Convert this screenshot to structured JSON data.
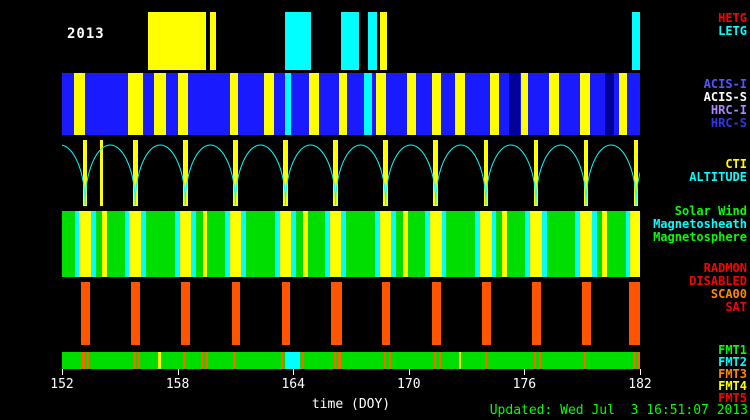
{
  "title_year": "2013",
  "x_axis": {
    "label": "time (DOY)",
    "min": 152,
    "max": 182,
    "ticks": [
      152,
      158,
      164,
      170,
      176,
      182
    ]
  },
  "footer": {
    "updated": "Updated: Wed Jul  3 16:51:07 2013"
  },
  "chart_data": {
    "type": "timeline-bands",
    "x_range": [
      152,
      182
    ],
    "x_unit": "day of year 2013",
    "bands": [
      {
        "id": "gratings",
        "background": "#000000",
        "labels": [
          {
            "text": "HETG",
            "color": "#ff0000"
          },
          {
            "text": "LETG",
            "color": "#00ffff"
          }
        ],
        "segments": [
          {
            "start": 156.45,
            "end": 159.45,
            "color": "#ffff00"
          },
          {
            "start": 159.7,
            "end": 160.0,
            "color": "#ffff00"
          },
          {
            "start": 163.55,
            "end": 164.9,
            "color": "#00ffff"
          },
          {
            "start": 166.5,
            "end": 167.4,
            "color": "#00ffff"
          },
          {
            "start": 167.9,
            "end": 168.35,
            "color": "#00ffff"
          },
          {
            "start": 168.5,
            "end": 168.85,
            "color": "#ffff00"
          },
          {
            "start": 181.6,
            "end": 182.0,
            "color": "#00ffff"
          }
        ]
      },
      {
        "id": "instruments",
        "background": "#1a1aff",
        "labels": [
          {
            "text": "ACIS-I",
            "color": "#5555ff"
          },
          {
            "text": "ACIS-S",
            "color": "#ffffff"
          },
          {
            "text": "HRC-I",
            "color": "#aa88ff"
          },
          {
            "text": "HRC-S",
            "color": "#3333ee"
          }
        ],
        "segments": [
          {
            "start": 152.6,
            "end": 153.2,
            "color": "#ffff00"
          },
          {
            "start": 155.4,
            "end": 156.2,
            "color": "#ffff00"
          },
          {
            "start": 156.8,
            "end": 157.4,
            "color": "#ffff00"
          },
          {
            "start": 158.0,
            "end": 158.55,
            "color": "#ffff00"
          },
          {
            "start": 160.7,
            "end": 161.15,
            "color": "#ffff00"
          },
          {
            "start": 162.5,
            "end": 163.0,
            "color": "#ffff00"
          },
          {
            "start": 163.6,
            "end": 163.9,
            "color": "#00ffff"
          },
          {
            "start": 164.8,
            "end": 165.35,
            "color": "#ffff00"
          },
          {
            "start": 166.4,
            "end": 166.8,
            "color": "#ffff00"
          },
          {
            "start": 167.7,
            "end": 168.1,
            "color": "#00ffff"
          },
          {
            "start": 168.3,
            "end": 168.8,
            "color": "#ffff00"
          },
          {
            "start": 169.9,
            "end": 170.4,
            "color": "#ffff00"
          },
          {
            "start": 171.2,
            "end": 171.65,
            "color": "#ffff00"
          },
          {
            "start": 172.4,
            "end": 172.9,
            "color": "#ffff00"
          },
          {
            "start": 174.2,
            "end": 174.7,
            "color": "#ffff00"
          },
          {
            "start": 175.2,
            "end": 175.75,
            "color": "#000099"
          },
          {
            "start": 175.8,
            "end": 176.2,
            "color": "#ffff00"
          },
          {
            "start": 177.3,
            "end": 177.8,
            "color": "#ffff00"
          },
          {
            "start": 178.9,
            "end": 179.4,
            "color": "#ffff00"
          },
          {
            "start": 180.2,
            "end": 180.65,
            "color": "#000099"
          },
          {
            "start": 180.9,
            "end": 181.3,
            "color": "#ffff00"
          }
        ]
      },
      {
        "id": "altitude",
        "background": "#000000",
        "arc_color": "#00ffff",
        "labels": [
          {
            "text": "CTI",
            "color": "#ffff00"
          },
          {
            "text": "ALTITUDE",
            "color": "#00ffff"
          }
        ],
        "segments": [
          {
            "start": 153.08,
            "end": 153.32,
            "color": "#ffff00"
          },
          {
            "start": 153.95,
            "end": 154.15,
            "color": "#ffff00"
          },
          {
            "start": 155.68,
            "end": 155.92,
            "color": "#ffff00"
          },
          {
            "start": 158.28,
            "end": 158.52,
            "color": "#ffff00"
          },
          {
            "start": 160.88,
            "end": 161.12,
            "color": "#ffff00"
          },
          {
            "start": 163.48,
            "end": 163.72,
            "color": "#ffff00"
          },
          {
            "start": 166.08,
            "end": 166.32,
            "color": "#ffff00"
          },
          {
            "start": 168.68,
            "end": 168.92,
            "color": "#ffff00"
          },
          {
            "start": 171.28,
            "end": 171.52,
            "color": "#ffff00"
          },
          {
            "start": 173.88,
            "end": 174.12,
            "color": "#ffff00"
          },
          {
            "start": 176.48,
            "end": 176.72,
            "color": "#ffff00"
          },
          {
            "start": 179.08,
            "end": 179.32,
            "color": "#ffff00"
          },
          {
            "start": 181.68,
            "end": 181.92,
            "color": "#ffff00"
          }
        ],
        "arcs": [
          {
            "start": 150.6,
            "end": 153.2
          },
          {
            "start": 153.2,
            "end": 155.8
          },
          {
            "start": 155.8,
            "end": 158.4
          },
          {
            "start": 158.4,
            "end": 161.0
          },
          {
            "start": 161.0,
            "end": 163.6
          },
          {
            "start": 163.6,
            "end": 166.2
          },
          {
            "start": 166.2,
            "end": 168.8
          },
          {
            "start": 168.8,
            "end": 171.4
          },
          {
            "start": 171.4,
            "end": 174.0
          },
          {
            "start": 174.0,
            "end": 176.6
          },
          {
            "start": 176.6,
            "end": 179.2
          },
          {
            "start": 179.2,
            "end": 181.8
          },
          {
            "start": 181.8,
            "end": 184.4
          }
        ]
      },
      {
        "id": "solar-wind-region",
        "background": "#00dd00",
        "labels": [
          {
            "text": "Solar Wind",
            "color": "#00ff00"
          },
          {
            "text": "Magnetosheath",
            "color": "#00ffff"
          },
          {
            "text": "Magnetosphere",
            "color": "#00ff00"
          }
        ],
        "segments": [
          {
            "start": 152.65,
            "end": 152.9,
            "color": "#00ffff"
          },
          {
            "start": 152.9,
            "end": 153.5,
            "color": "#ffff00"
          },
          {
            "start": 153.5,
            "end": 153.75,
            "color": "#00ffff"
          },
          {
            "start": 154.1,
            "end": 154.35,
            "color": "#ffff00"
          },
          {
            "start": 155.25,
            "end": 155.5,
            "color": "#00ffff"
          },
          {
            "start": 155.5,
            "end": 156.1,
            "color": "#ffff00"
          },
          {
            "start": 156.1,
            "end": 156.35,
            "color": "#00ffff"
          },
          {
            "start": 157.85,
            "end": 158.1,
            "color": "#00ffff"
          },
          {
            "start": 158.1,
            "end": 158.7,
            "color": "#ffff00"
          },
          {
            "start": 158.7,
            "end": 158.95,
            "color": "#00ffff"
          },
          {
            "start": 159.3,
            "end": 159.55,
            "color": "#ffff00"
          },
          {
            "start": 160.45,
            "end": 160.7,
            "color": "#00ffff"
          },
          {
            "start": 160.7,
            "end": 161.3,
            "color": "#ffff00"
          },
          {
            "start": 161.3,
            "end": 161.55,
            "color": "#00ffff"
          },
          {
            "start": 163.05,
            "end": 163.3,
            "color": "#00ffff"
          },
          {
            "start": 163.3,
            "end": 163.9,
            "color": "#ffff00"
          },
          {
            "start": 163.9,
            "end": 164.15,
            "color": "#00ffff"
          },
          {
            "start": 164.5,
            "end": 164.75,
            "color": "#ffff00"
          },
          {
            "start": 165.65,
            "end": 165.9,
            "color": "#00ffff"
          },
          {
            "start": 165.9,
            "end": 166.5,
            "color": "#ffff00"
          },
          {
            "start": 166.5,
            "end": 166.75,
            "color": "#00ffff"
          },
          {
            "start": 168.25,
            "end": 168.5,
            "color": "#00ffff"
          },
          {
            "start": 168.5,
            "end": 169.1,
            "color": "#ffff00"
          },
          {
            "start": 169.1,
            "end": 169.35,
            "color": "#00ffff"
          },
          {
            "start": 169.7,
            "end": 169.95,
            "color": "#ffff00"
          },
          {
            "start": 170.85,
            "end": 171.1,
            "color": "#00ffff"
          },
          {
            "start": 171.1,
            "end": 171.7,
            "color": "#ffff00"
          },
          {
            "start": 171.7,
            "end": 171.95,
            "color": "#00ffff"
          },
          {
            "start": 173.45,
            "end": 173.7,
            "color": "#00ffff"
          },
          {
            "start": 173.7,
            "end": 174.3,
            "color": "#ffff00"
          },
          {
            "start": 174.3,
            "end": 174.55,
            "color": "#00ffff"
          },
          {
            "start": 174.85,
            "end": 175.1,
            "color": "#ffff00"
          },
          {
            "start": 176.05,
            "end": 176.3,
            "color": "#00ffff"
          },
          {
            "start": 176.3,
            "end": 176.9,
            "color": "#ffff00"
          },
          {
            "start": 176.9,
            "end": 177.15,
            "color": "#00ffff"
          },
          {
            "start": 178.65,
            "end": 178.9,
            "color": "#00ffff"
          },
          {
            "start": 178.9,
            "end": 179.5,
            "color": "#ffff00"
          },
          {
            "start": 179.5,
            "end": 179.75,
            "color": "#00ffff"
          },
          {
            "start": 180.05,
            "end": 180.3,
            "color": "#ffff00"
          },
          {
            "start": 181.25,
            "end": 181.5,
            "color": "#00ffff"
          },
          {
            "start": 181.5,
            "end": 182.0,
            "color": "#ffff00"
          }
        ]
      },
      {
        "id": "radmon",
        "background": "#000000",
        "labels": [
          {
            "text": "RADMON",
            "color": "#ff0000"
          },
          {
            "text": "DISABLED",
            "color": "#ff0000"
          },
          {
            "text": "SCA00",
            "color": "#ff8800"
          },
          {
            "text": "SAT",
            "color": "#ff0000"
          }
        ],
        "segments": [
          {
            "start": 153.0,
            "end": 153.45,
            "color": "#ff5500"
          },
          {
            "start": 155.6,
            "end": 156.05,
            "color": "#ff5500"
          },
          {
            "start": 158.2,
            "end": 158.65,
            "color": "#ff5500"
          },
          {
            "start": 160.8,
            "end": 161.25,
            "color": "#ff5500"
          },
          {
            "start": 163.4,
            "end": 163.85,
            "color": "#ff5500"
          },
          {
            "start": 165.95,
            "end": 166.55,
            "color": "#ff5500"
          },
          {
            "start": 168.6,
            "end": 169.05,
            "color": "#ff5500"
          },
          {
            "start": 171.2,
            "end": 171.65,
            "color": "#ff5500"
          },
          {
            "start": 173.8,
            "end": 174.25,
            "color": "#ff5500"
          },
          {
            "start": 176.4,
            "end": 176.85,
            "color": "#ff5500"
          },
          {
            "start": 179.0,
            "end": 179.45,
            "color": "#ff5500"
          },
          {
            "start": 181.45,
            "end": 182.0,
            "color": "#ff5500"
          }
        ]
      },
      {
        "id": "telemetry-format",
        "background": "#00dd00",
        "labels": [
          {
            "text": "FMT1",
            "color": "#00ff00"
          },
          {
            "text": "FMT2",
            "color": "#00ffff"
          },
          {
            "text": "FMT3",
            "color": "#ff8800"
          },
          {
            "text": "FMT4",
            "color": "#ffff00"
          },
          {
            "text": "FMT5",
            "color": "#ff0000"
          }
        ],
        "segments": [
          {
            "start": 163.55,
            "end": 164.35,
            "color": "#00ffff"
          },
          {
            "start": 153.05,
            "end": 153.17,
            "color": "#ff6600"
          },
          {
            "start": 153.3,
            "end": 153.42,
            "color": "#ff6600"
          },
          {
            "start": 155.7,
            "end": 155.82,
            "color": "#ff6600"
          },
          {
            "start": 155.95,
            "end": 156.07,
            "color": "#ff6600"
          },
          {
            "start": 157.0,
            "end": 157.12,
            "color": "#ffff00"
          },
          {
            "start": 158.3,
            "end": 158.42,
            "color": "#ff6600"
          },
          {
            "start": 159.2,
            "end": 159.32,
            "color": "#ff6600"
          },
          {
            "start": 159.45,
            "end": 159.57,
            "color": "#ff6600"
          },
          {
            "start": 160.9,
            "end": 161.02,
            "color": "#ff6600"
          },
          {
            "start": 163.35,
            "end": 163.47,
            "color": "#ff6600"
          },
          {
            "start": 164.45,
            "end": 164.57,
            "color": "#ff6600"
          },
          {
            "start": 166.1,
            "end": 166.22,
            "color": "#ff6600"
          },
          {
            "start": 166.35,
            "end": 166.47,
            "color": "#ff6600"
          },
          {
            "start": 168.7,
            "end": 168.82,
            "color": "#ff6600"
          },
          {
            "start": 168.95,
            "end": 169.07,
            "color": "#ff6600"
          },
          {
            "start": 171.3,
            "end": 171.42,
            "color": "#ff6600"
          },
          {
            "start": 171.55,
            "end": 171.67,
            "color": "#ff6600"
          },
          {
            "start": 172.6,
            "end": 172.72,
            "color": "#ffff00"
          },
          {
            "start": 173.95,
            "end": 174.07,
            "color": "#ff6600"
          },
          {
            "start": 176.5,
            "end": 176.62,
            "color": "#ff6600"
          },
          {
            "start": 176.75,
            "end": 176.87,
            "color": "#ff6600"
          },
          {
            "start": 179.1,
            "end": 179.22,
            "color": "#ff6600"
          },
          {
            "start": 181.65,
            "end": 181.77,
            "color": "#ff6600"
          },
          {
            "start": 181.9,
            "end": 182.0,
            "color": "#ff6600"
          }
        ]
      }
    ]
  }
}
